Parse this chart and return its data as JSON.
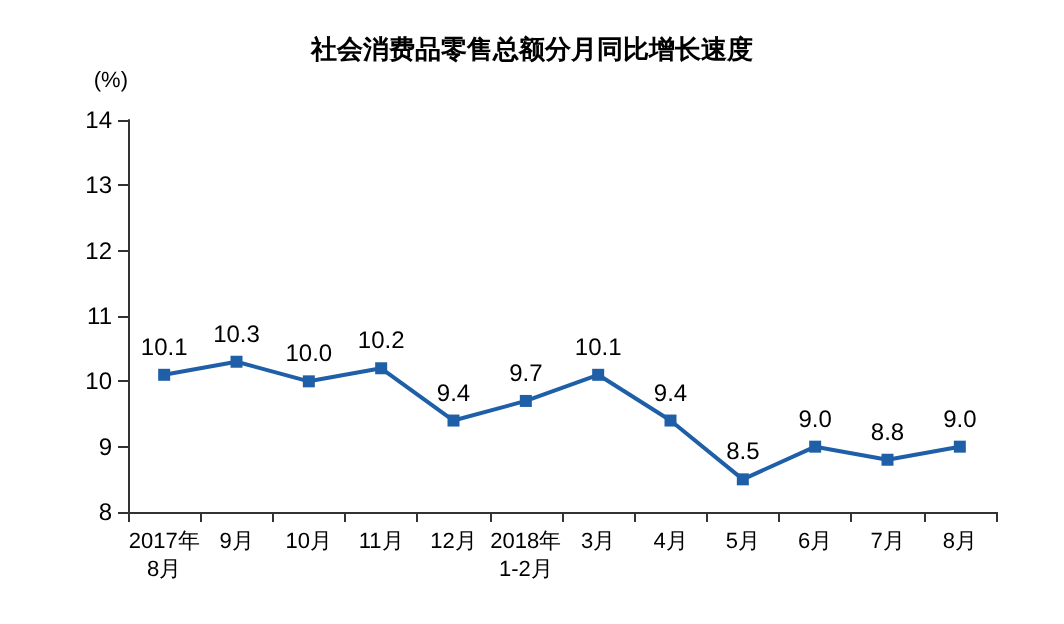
{
  "chart_data": {
    "type": "line",
    "title": "社会消费品零售总额分月同比增长速度",
    "ylabel": "(%)",
    "categories": [
      "2017年\n8月",
      "9月",
      "10月",
      "11月",
      "12月",
      "2018年\n1-2月",
      "3月",
      "4月",
      "5月",
      "6月",
      "7月",
      "8月"
    ],
    "series": [
      {
        "color": "#1f5fa8",
        "values": [
          10.1,
          10.3,
          10.0,
          10.2,
          9.4,
          9.7,
          10.1,
          9.4,
          8.5,
          9.0,
          8.8,
          9.0
        ],
        "value_labels": [
          "10.1",
          "10.3",
          "10.0",
          "10.2",
          "9.4",
          "9.7",
          "10.1",
          "9.4",
          "8.5",
          "9.0",
          "8.8",
          "9.0"
        ]
      }
    ],
    "ylim": [
      8,
      14
    ],
    "yticks": [
      8,
      9,
      10,
      11,
      12,
      13,
      14
    ],
    "grid": false,
    "marker": "square",
    "line_style": "solid"
  }
}
